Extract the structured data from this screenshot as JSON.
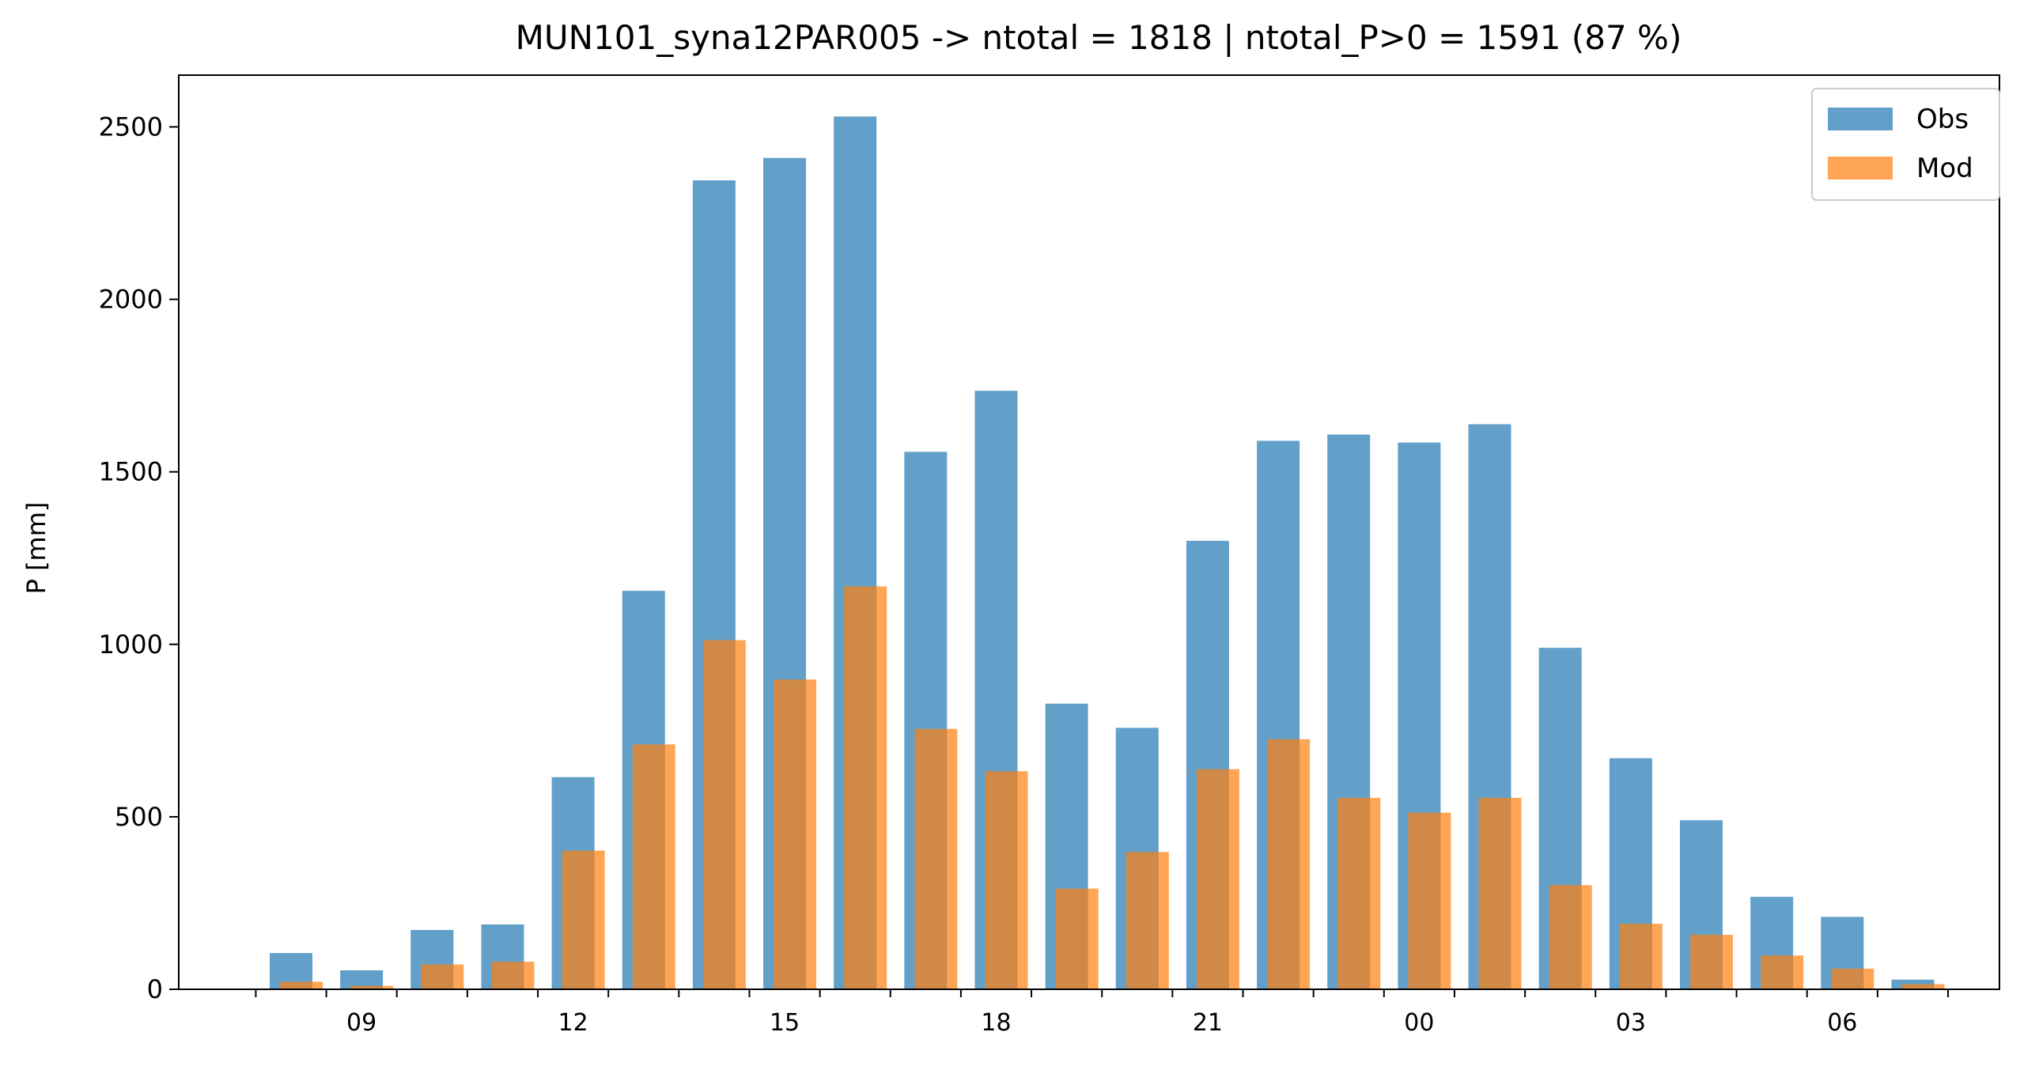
{
  "chart_data": {
    "type": "bar",
    "title": "MUN101_syna12PAR005 -> ntotal = 1818 | ntotal_P>0 = 1591 (87 %)",
    "xlabel": "",
    "ylabel": "P [mm]",
    "ylim": [
      0,
      2650
    ],
    "yticks": [
      0,
      500,
      1000,
      1500,
      2000,
      2500
    ],
    "x_hours": [
      8,
      9,
      10,
      11,
      12,
      13,
      14,
      15,
      16,
      17,
      18,
      19,
      20,
      21,
      22,
      23,
      0,
      1,
      2,
      3,
      4,
      5,
      6,
      7
    ],
    "x_tick_labels": [
      "09",
      "12",
      "15",
      "18",
      "21",
      "00",
      "03",
      "06"
    ],
    "series": [
      {
        "name": "Obs",
        "color": "#1f77b4",
        "values": [
          105,
          55,
          172,
          188,
          615,
          1155,
          2345,
          2410,
          2530,
          1558,
          1735,
          828,
          758,
          1300,
          1590,
          1608,
          1585,
          1638,
          990,
          670,
          490,
          268,
          210,
          28
        ]
      },
      {
        "name": "Mod",
        "color": "#ff7f0e",
        "values": [
          22,
          10,
          72,
          80,
          402,
          710,
          1012,
          898,
          1168,
          755,
          632,
          292,
          398,
          638,
          725,
          555,
          512,
          555,
          302,
          190,
          158,
          98,
          60,
          15
        ]
      }
    ],
    "legend": [
      "Obs",
      "Mod"
    ],
    "legend_position": "top-right",
    "grid": false
  }
}
